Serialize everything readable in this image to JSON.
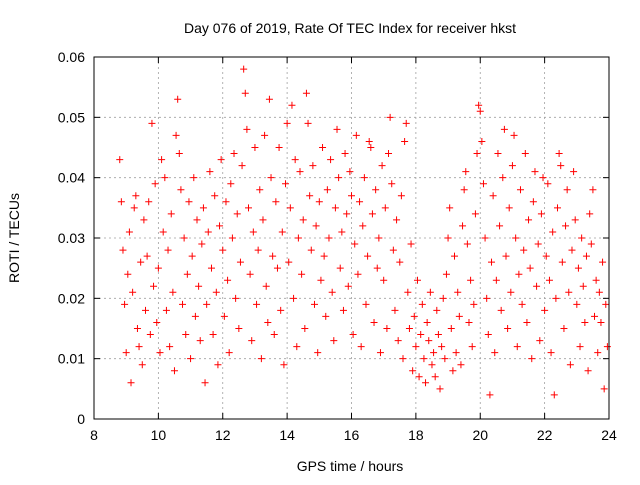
{
  "chart_data": {
    "type": "scatter",
    "title": "Day 076 of 2019, Rate Of TEC Index for receiver hkst",
    "xlabel": "GPS time / hours",
    "ylabel": "ROTI / TECUs",
    "xlim": [
      8,
      24
    ],
    "ylim": [
      0,
      0.06
    ],
    "x_ticks": [
      8,
      10,
      12,
      14,
      16,
      18,
      20,
      22,
      24
    ],
    "x_tick_labels": [
      "8",
      "10",
      "12",
      "14",
      "16",
      "18",
      "20",
      "22",
      "24"
    ],
    "y_ticks": [
      0,
      0.01,
      0.02,
      0.03,
      0.04,
      0.05,
      0.06
    ],
    "y_tick_labels": [
      "0",
      "0.01",
      "0.02",
      "0.03",
      "0.04",
      "0.05",
      "0.06"
    ],
    "grid": true,
    "marker": "+",
    "marker_color": "#ff0000",
    "series": [
      {
        "name": "ROTI",
        "color": "#ff0000",
        "points": [
          [
            8.8,
            0.043
          ],
          [
            8.85,
            0.036
          ],
          [
            8.9,
            0.028
          ],
          [
            8.95,
            0.019
          ],
          [
            9.0,
            0.011
          ],
          [
            9.05,
            0.024
          ],
          [
            9.1,
            0.031
          ],
          [
            9.15,
            0.006
          ],
          [
            9.2,
            0.021
          ],
          [
            9.25,
            0.035
          ],
          [
            9.3,
            0.037
          ],
          [
            9.35,
            0.015
          ],
          [
            9.4,
            0.012
          ],
          [
            9.45,
            0.026
          ],
          [
            9.5,
            0.009
          ],
          [
            9.55,
            0.033
          ],
          [
            9.6,
            0.018
          ],
          [
            9.65,
            0.027
          ],
          [
            9.7,
            0.036
          ],
          [
            9.75,
            0.014
          ],
          [
            9.8,
            0.049
          ],
          [
            9.85,
            0.022
          ],
          [
            9.9,
            0.039
          ],
          [
            9.95,
            0.016
          ],
          [
            10.0,
            0.025
          ],
          [
            10.05,
            0.011
          ],
          [
            10.1,
            0.043
          ],
          [
            10.15,
            0.031
          ],
          [
            10.2,
            0.04
          ],
          [
            10.25,
            0.018
          ],
          [
            10.3,
            0.028
          ],
          [
            10.35,
            0.012
          ],
          [
            10.4,
            0.034
          ],
          [
            10.45,
            0.021
          ],
          [
            10.5,
            0.008
          ],
          [
            10.55,
            0.047
          ],
          [
            10.6,
            0.053
          ],
          [
            10.65,
            0.044
          ],
          [
            10.7,
            0.038
          ],
          [
            10.75,
            0.019
          ],
          [
            10.8,
            0.03
          ],
          [
            10.85,
            0.014
          ],
          [
            10.9,
            0.024
          ],
          [
            10.95,
            0.036
          ],
          [
            11.0,
            0.01
          ],
          [
            11.05,
            0.027
          ],
          [
            11.1,
            0.04
          ],
          [
            11.15,
            0.017
          ],
          [
            11.2,
            0.033
          ],
          [
            11.25,
            0.022
          ],
          [
            11.3,
            0.013
          ],
          [
            11.35,
            0.029
          ],
          [
            11.4,
            0.035
          ],
          [
            11.45,
            0.006
          ],
          [
            11.5,
            0.019
          ],
          [
            11.55,
            0.031
          ],
          [
            11.6,
            0.041
          ],
          [
            11.65,
            0.025
          ],
          [
            11.7,
            0.014
          ],
          [
            11.75,
            0.037
          ],
          [
            11.8,
            0.021
          ],
          [
            11.85,
            0.009
          ],
          [
            11.9,
            0.032
          ],
          [
            11.95,
            0.043
          ],
          [
            12.0,
            0.028
          ],
          [
            12.05,
            0.017
          ],
          [
            12.1,
            0.036
          ],
          [
            12.15,
            0.023
          ],
          [
            12.2,
            0.011
          ],
          [
            12.25,
            0.039
          ],
          [
            12.3,
            0.03
          ],
          [
            12.35,
            0.044
          ],
          [
            12.4,
            0.02
          ],
          [
            12.45,
            0.034
          ],
          [
            12.5,
            0.015
          ],
          [
            12.55,
            0.026
          ],
          [
            12.6,
            0.042
          ],
          [
            12.65,
            0.058
          ],
          [
            12.7,
            0.054
          ],
          [
            12.75,
            0.048
          ],
          [
            12.8,
            0.035
          ],
          [
            12.85,
            0.024
          ],
          [
            12.9,
            0.013
          ],
          [
            12.95,
            0.031
          ],
          [
            13.0,
            0.045
          ],
          [
            13.05,
            0.019
          ],
          [
            13.1,
            0.028
          ],
          [
            13.15,
            0.038
          ],
          [
            13.2,
            0.01
          ],
          [
            13.25,
            0.033
          ],
          [
            13.3,
            0.047
          ],
          [
            13.35,
            0.022
          ],
          [
            13.4,
            0.016
          ],
          [
            13.45,
            0.053
          ],
          [
            13.5,
            0.04
          ],
          [
            13.55,
            0.027
          ],
          [
            13.6,
            0.014
          ],
          [
            13.65,
            0.036
          ],
          [
            13.7,
            0.025
          ],
          [
            13.75,
            0.045
          ],
          [
            13.8,
            0.018
          ],
          [
            13.85,
            0.031
          ],
          [
            13.9,
            0.009
          ],
          [
            13.95,
            0.039
          ],
          [
            14.0,
            0.049
          ],
          [
            14.05,
            0.026
          ],
          [
            14.1,
            0.035
          ],
          [
            14.15,
            0.052
          ],
          [
            14.2,
            0.02
          ],
          [
            14.25,
            0.043
          ],
          [
            14.3,
            0.012
          ],
          [
            14.35,
            0.03
          ],
          [
            14.4,
            0.041
          ],
          [
            14.45,
            0.024
          ],
          [
            14.5,
            0.033
          ],
          [
            14.55,
            0.015
          ],
          [
            14.6,
            0.054
          ],
          [
            14.65,
            0.049
          ],
          [
            14.7,
            0.037
          ],
          [
            14.75,
            0.028
          ],
          [
            14.8,
            0.042
          ],
          [
            14.85,
            0.019
          ],
          [
            14.9,
            0.032
          ],
          [
            14.95,
            0.011
          ],
          [
            15.0,
            0.036
          ],
          [
            15.05,
            0.023
          ],
          [
            15.1,
            0.045
          ],
          [
            15.15,
            0.027
          ],
          [
            15.2,
            0.017
          ],
          [
            15.25,
            0.038
          ],
          [
            15.3,
            0.03
          ],
          [
            15.35,
            0.043
          ],
          [
            15.4,
            0.021
          ],
          [
            15.45,
            0.013
          ],
          [
            15.5,
            0.035
          ],
          [
            15.55,
            0.048
          ],
          [
            15.6,
            0.04
          ],
          [
            15.65,
            0.025
          ],
          [
            15.7,
            0.031
          ],
          [
            15.75,
            0.018
          ],
          [
            15.8,
            0.044
          ],
          [
            15.85,
            0.034
          ],
          [
            15.9,
            0.022
          ],
          [
            15.95,
            0.041
          ],
          [
            16.0,
            0.037
          ],
          [
            16.05,
            0.014
          ],
          [
            16.1,
            0.029
          ],
          [
            16.15,
            0.047
          ],
          [
            16.2,
            0.024
          ],
          [
            16.25,
            0.036
          ],
          [
            16.3,
            0.012
          ],
          [
            16.35,
            0.032
          ],
          [
            16.4,
            0.04
          ],
          [
            16.45,
            0.019
          ],
          [
            16.5,
            0.027
          ],
          [
            16.55,
            0.046
          ],
          [
            16.6,
            0.045
          ],
          [
            16.65,
            0.034
          ],
          [
            16.7,
            0.016
          ],
          [
            16.75,
            0.038
          ],
          [
            16.8,
            0.025
          ],
          [
            16.85,
            0.03
          ],
          [
            16.9,
            0.011
          ],
          [
            16.95,
            0.042
          ],
          [
            17.0,
            0.023
          ],
          [
            17.05,
            0.035
          ],
          [
            17.1,
            0.015
          ],
          [
            17.15,
            0.044
          ],
          [
            17.2,
            0.05
          ],
          [
            17.25,
            0.039
          ],
          [
            17.3,
            0.028
          ],
          [
            17.35,
            0.018
          ],
          [
            17.4,
            0.033
          ],
          [
            17.45,
            0.013
          ],
          [
            17.5,
            0.026
          ],
          [
            17.55,
            0.037
          ],
          [
            17.6,
            0.01
          ],
          [
            17.65,
            0.046
          ],
          [
            17.7,
            0.049
          ],
          [
            17.75,
            0.021
          ],
          [
            17.8,
            0.015
          ],
          [
            17.85,
            0.029
          ],
          [
            17.9,
            0.008
          ],
          [
            17.95,
            0.017
          ],
          [
            18.0,
            0.012
          ],
          [
            18.05,
            0.023
          ],
          [
            18.1,
            0.007
          ],
          [
            18.15,
            0.014
          ],
          [
            18.2,
            0.019
          ],
          [
            18.25,
            0.01
          ],
          [
            18.3,
            0.006
          ],
          [
            18.35,
            0.016
          ],
          [
            18.4,
            0.013
          ],
          [
            18.45,
            0.021
          ],
          [
            18.5,
            0.009
          ],
          [
            18.55,
            0.011
          ],
          [
            18.6,
            0.007
          ],
          [
            18.65,
            0.018
          ],
          [
            18.7,
            0.014
          ],
          [
            18.75,
            0.005
          ],
          [
            18.8,
            0.012
          ],
          [
            18.85,
            0.02
          ],
          [
            18.9,
            0.01
          ],
          [
            18.95,
            0.024
          ],
          [
            19.0,
            0.03
          ],
          [
            19.05,
            0.035
          ],
          [
            19.1,
            0.015
          ],
          [
            19.15,
            0.008
          ],
          [
            19.2,
            0.027
          ],
          [
            19.25,
            0.011
          ],
          [
            19.3,
            0.021
          ],
          [
            19.35,
            0.017
          ],
          [
            19.4,
            0.009
          ],
          [
            19.45,
            0.032
          ],
          [
            19.5,
            0.038
          ],
          [
            19.55,
            0.041
          ],
          [
            19.6,
            0.029
          ],
          [
            19.65,
            0.016
          ],
          [
            19.7,
            0.023
          ],
          [
            19.75,
            0.012
          ],
          [
            19.8,
            0.019
          ],
          [
            19.85,
            0.034
          ],
          [
            19.9,
            0.044
          ],
          [
            19.95,
            0.052
          ],
          [
            20.0,
            0.051
          ],
          [
            20.05,
            0.046
          ],
          [
            20.1,
            0.039
          ],
          [
            20.15,
            0.03
          ],
          [
            20.2,
            0.02
          ],
          [
            20.25,
            0.014
          ],
          [
            20.3,
            0.004
          ],
          [
            20.35,
            0.026
          ],
          [
            20.4,
            0.037
          ],
          [
            20.45,
            0.011
          ],
          [
            20.5,
            0.023
          ],
          [
            20.55,
            0.044
          ],
          [
            20.6,
            0.032
          ],
          [
            20.65,
            0.018
          ],
          [
            20.7,
            0.04
          ],
          [
            20.75,
            0.048
          ],
          [
            20.8,
            0.027
          ],
          [
            20.85,
            0.015
          ],
          [
            20.9,
            0.035
          ],
          [
            20.95,
            0.021
          ],
          [
            21.0,
            0.042
          ],
          [
            21.05,
            0.047
          ],
          [
            21.1,
            0.03
          ],
          [
            21.15,
            0.012
          ],
          [
            21.2,
            0.024
          ],
          [
            21.25,
            0.038
          ],
          [
            21.3,
            0.019
          ],
          [
            21.35,
            0.028
          ],
          [
            21.4,
            0.044
          ],
          [
            21.45,
            0.016
          ],
          [
            21.5,
            0.033
          ],
          [
            21.55,
            0.025
          ],
          [
            21.6,
            0.01
          ],
          [
            21.65,
            0.036
          ],
          [
            21.7,
            0.041
          ],
          [
            21.75,
            0.022
          ],
          [
            21.8,
            0.029
          ],
          [
            21.85,
            0.013
          ],
          [
            21.9,
            0.034
          ],
          [
            21.95,
            0.04
          ],
          [
            22.0,
            0.018
          ],
          [
            22.05,
            0.027
          ],
          [
            22.1,
            0.039
          ],
          [
            22.15,
            0.023
          ],
          [
            22.2,
            0.011
          ],
          [
            22.25,
            0.031
          ],
          [
            22.3,
            0.004
          ],
          [
            22.35,
            0.02
          ],
          [
            22.4,
            0.035
          ],
          [
            22.45,
            0.044
          ],
          [
            22.5,
            0.042
          ],
          [
            22.55,
            0.026
          ],
          [
            22.6,
            0.015
          ],
          [
            22.65,
            0.032
          ],
          [
            22.7,
            0.038
          ],
          [
            22.75,
            0.021
          ],
          [
            22.8,
            0.009
          ],
          [
            22.85,
            0.028
          ],
          [
            22.9,
            0.041
          ],
          [
            22.95,
            0.033
          ],
          [
            23.0,
            0.019
          ],
          [
            23.05,
            0.025
          ],
          [
            23.1,
            0.012
          ],
          [
            23.15,
            0.03
          ],
          [
            23.2,
            0.022
          ],
          [
            23.25,
            0.016
          ],
          [
            23.3,
            0.027
          ],
          [
            23.35,
            0.008
          ],
          [
            23.4,
            0.034
          ],
          [
            23.45,
            0.029
          ],
          [
            23.5,
            0.038
          ],
          [
            23.55,
            0.017
          ],
          [
            23.6,
            0.023
          ],
          [
            23.65,
            0.011
          ],
          [
            23.7,
            0.021
          ],
          [
            23.75,
            0.016
          ],
          [
            23.8,
            0.026
          ],
          [
            23.85,
            0.005
          ],
          [
            23.9,
            0.019
          ],
          [
            23.95,
            0.012
          ]
        ]
      }
    ]
  }
}
